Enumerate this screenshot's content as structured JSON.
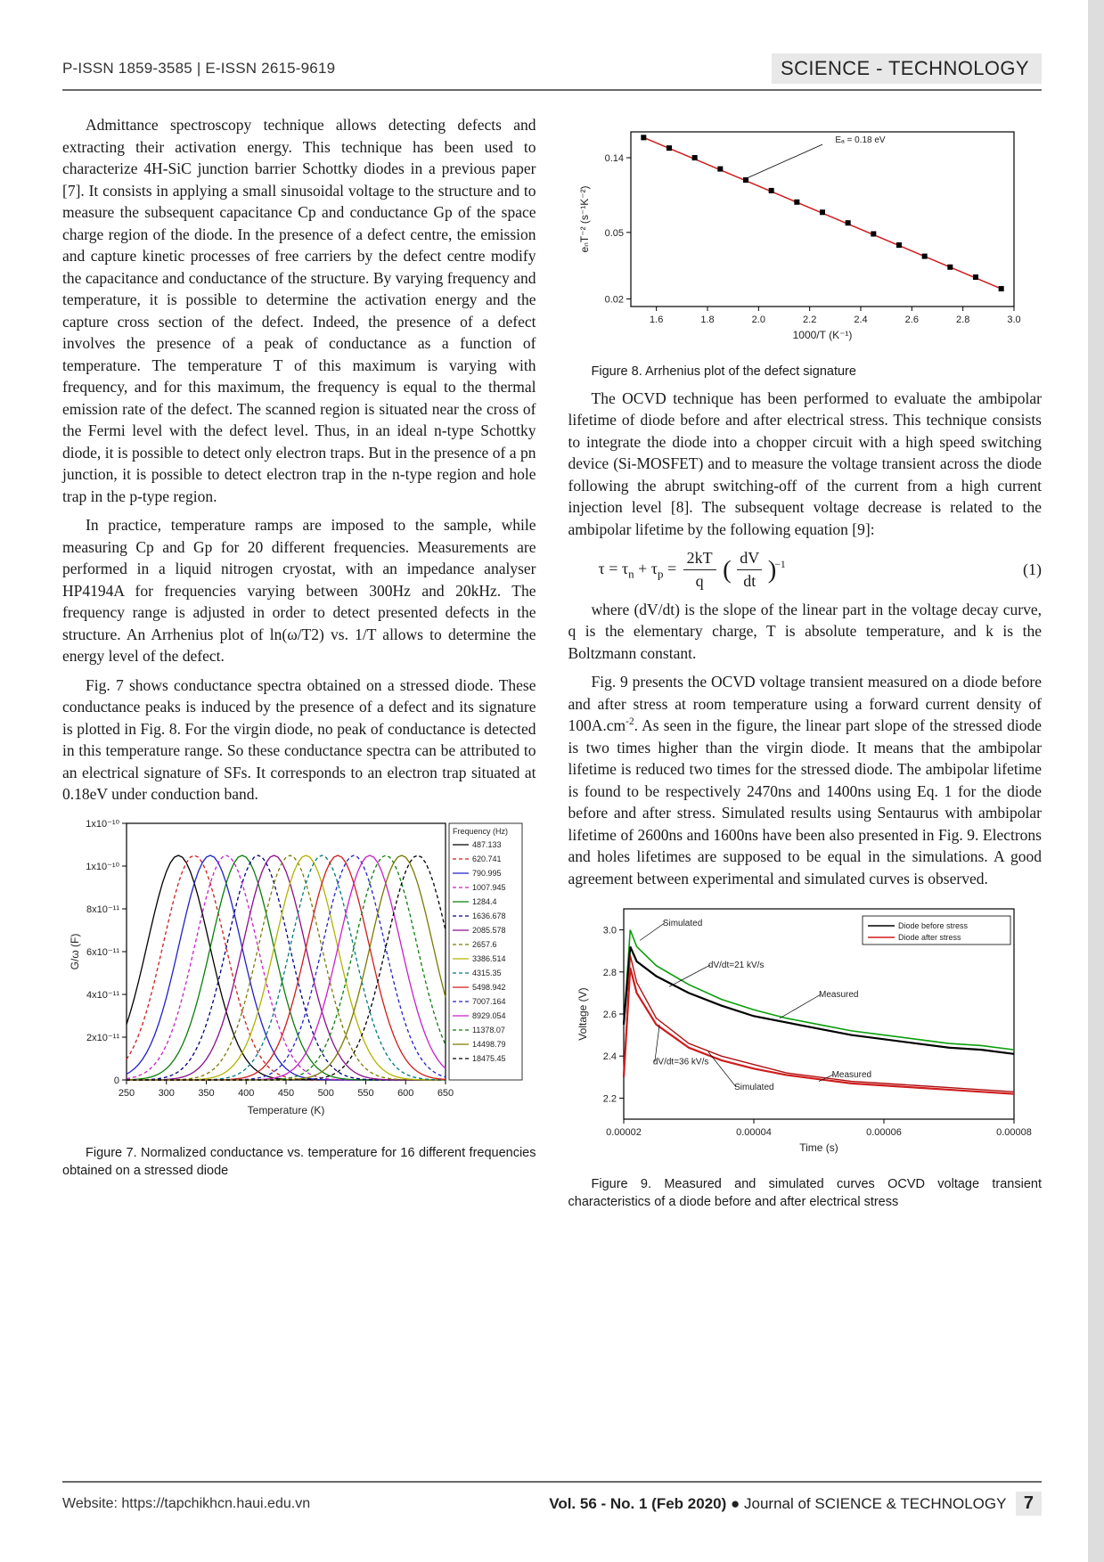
{
  "header": {
    "issn_left": "P-ISSN 1859-3585 | E-ISSN 2615-9619",
    "right": "SCIENCE - TECHNOLOGY"
  },
  "left_column": {
    "p1": "Admittance spectroscopy technique allows detecting defects and extracting their activation energy. This technique has been used to characterize 4H-SiC junction barrier Schottky diodes in a previous paper [7]. It consists in applying a small sinusoidal voltage to the structure and to measure the subsequent capacitance Cp and conductance Gp of the space charge region of the diode. In the presence of a defect centre, the emission and capture kinetic processes of free carriers by the defect centre modify the capacitance and conductance of the structure. By varying frequency and temperature, it is possible to determine the activation energy and the capture cross section of the defect. Indeed, the presence of a defect involves the presence of a peak of conductance as a function of temperature. The temperature T of this maximum is varying with frequency, and for this maximum, the frequency is equal to the thermal emission rate of the defect. The scanned region is situated near the cross of the Fermi level with the defect level. Thus, in an ideal n-type Schottky diode, it is possible to detect only electron traps. But in the presence of a pn junction, it is possible to detect electron trap in the n-type region and hole trap in the p-type region.",
    "p2": "In practice, temperature ramps are imposed to the sample, while measuring Cp and Gp for 20 different frequencies. Measurements are performed in a liquid nitrogen cryostat, with an impedance analyser HP4194A for frequencies varying between 300Hz and 20kHz. The frequency range is adjusted in order to detect presented defects in the structure. An Arrhenius plot of ln(ω/T2) vs. 1/T allows to determine the energy level of the defect.",
    "p3": "Fig. 7 shows conductance spectra obtained on a stressed diode. These conductance peaks is induced by the presence of a defect and its signature is plotted in Fig. 8. For the virgin diode, no peak of conductance is detected in this temperature range. So these conductance spectra can be attributed to an electrical signature of SFs. It corresponds to an electron trap situated at 0.18eV under conduction band.",
    "fig7_caption": "Figure 7. Normalized conductance vs. temperature for 16 different frequencies obtained on a stressed diode"
  },
  "right_column": {
    "fig8_caption": "Figure 8. Arrhenius plot of the defect signature",
    "p1": "The OCVD technique has been performed to evaluate the ambipolar lifetime of diode before and after electrical stress. This technique consists to integrate the diode into a chopper circuit with a high speed switching device (Si-MOSFET) and to measure the voltage transient across the diode following the abrupt switching-off of the current from a high current injection level [8]. The subsequent voltage decrease is related to the ambipolar lifetime by the following equation [9]:",
    "eq1_label": "(1)",
    "p2": "where (dV/dt) is the slope of the linear part in the voltage decay curve, q is the elementary charge, T is absolute temperature, and k is the Boltzmann constant.",
    "p3_a": "Fig. 9 presents the OCVD voltage transient measured on a diode before and after stress at room temperature using a forward current density of 100A.cm",
    "p3_exp": "-2",
    "p3_b": ". As seen in the figure, the linear part slope of the stressed diode is two times higher than the virgin diode. It means that the ambipolar lifetime is reduced two times for the stressed diode. The ambipolar lifetime is found to be respectively 2470ns and 1400ns using Eq. 1 for the diode before and after stress. Simulated results using Sentaurus with ambipolar lifetime of 2600ns and 1600ns have been also presented in Fig. 9. Electrons and holes lifetimes are supposed to be equal in the simulations. A good agreement between experimental and simulated curves is observed.",
    "fig9_caption": "Figure 9. Measured and simulated curves OCVD voltage transient characteristics of a diode before and after electrical stress"
  },
  "footer": {
    "left": "Website: https://tapchikhcn.haui.edu.vn",
    "right_vol": "Vol. 56 - No. 1 (Feb 2020)",
    "right_journal": " ● Journal of SCIENCE & TECHNOLOGY",
    "page_num": "7"
  },
  "figure7": {
    "type": "line-multi",
    "xlabel": "Temperature (K)",
    "ylabel": "G/ω (F)",
    "xrange": [
      250,
      650
    ],
    "xtick_step": 50,
    "yticks_raw": [
      0,
      2,
      4,
      6,
      8,
      10,
      12
    ],
    "ytick_labels": [
      "0",
      "2x10⁻¹¹",
      "4x10⁻¹¹",
      "6x10⁻¹¹",
      "8x10⁻¹¹",
      "1x10⁻¹⁰",
      "1x10⁻¹⁰"
    ],
    "legend_title": "Frequency (Hz)",
    "legend": [
      "487.133",
      "620.741",
      "790.995",
      "1007.945",
      "1284.4",
      "1636.678",
      "2085.578",
      "2657.6",
      "3386.514",
      "4315.35",
      "5498.942",
      "7007.164",
      "8929.054",
      "11378.07",
      "14498.79",
      "18475.45"
    ],
    "colors": [
      "#000000",
      "#d01c1c",
      "#2020c8",
      "#c820c8",
      "#0b7d0b",
      "#000080",
      "#8a0f8a",
      "#7a7a00",
      "#b3b300",
      "#007a7a",
      "#d01c1c",
      "#2020c8",
      "#c820c8",
      "#0b7d0b",
      "#7a7a00",
      "#000000"
    ],
    "dash": [
      "",
      "4 3",
      "",
      "4 3",
      "",
      "4 3",
      "",
      "4 3",
      "",
      "4 3",
      "",
      "4 3",
      "",
      "4 3",
      "",
      "4 3"
    ],
    "peaks_T": [
      315,
      335,
      355,
      375,
      395,
      415,
      435,
      455,
      475,
      495,
      515,
      535,
      555,
      575,
      595,
      615
    ],
    "peak_height": 10.5,
    "spread": 55,
    "background_color": "#ffffff",
    "axis_color": "#000000",
    "label_fontsize": 13
  },
  "figure8": {
    "type": "semilog-y-line+markers",
    "xlabel": "1000/T (K⁻¹)",
    "ylabel": "eₙT⁻² (s⁻¹K⁻²)",
    "xrange": [
      1.5,
      3.0
    ],
    "xtick_step": 0.2,
    "yticks": [
      0.02,
      0.05,
      0.14
    ],
    "ytick_labels": [
      "0.02",
      "0.05",
      "0.14"
    ],
    "annotation": "Eₐ = 0.18 eV",
    "line_color": "#d01c1c",
    "marker_color": "#000000",
    "marker_shape": "square",
    "marker_size": 6,
    "points_x": [
      1.55,
      1.65,
      1.75,
      1.85,
      1.95,
      2.05,
      2.15,
      2.25,
      2.35,
      2.45,
      2.55,
      2.65,
      2.75,
      2.85,
      2.95
    ],
    "points_y": [
      0.185,
      0.16,
      0.14,
      0.12,
      0.103,
      0.089,
      0.076,
      0.066,
      0.057,
      0.049,
      0.042,
      0.036,
      0.031,
      0.027,
      0.023
    ],
    "background_color": "#ffffff",
    "axis_color": "#000000",
    "label_fontsize": 12
  },
  "figure9": {
    "type": "line-transient",
    "xlabel": "Time (s)",
    "ylabel": "Voltage (V)",
    "xrange": [
      2e-05,
      8e-05
    ],
    "xticks": [
      2e-05,
      4e-05,
      6e-05,
      8e-05
    ],
    "xtick_labels": [
      "0.00002",
      "0.00004",
      "0.00006",
      "0.00008"
    ],
    "yrange": [
      2.1,
      3.1
    ],
    "ytick_step": 0.2,
    "legend": [
      "Diode before stress",
      "Diode after stress"
    ],
    "legend_colors": [
      "#000000",
      "#d01c1c"
    ],
    "annotations": [
      "Simulated",
      "dV/dt=21 kV/s",
      "Measured",
      "dV/dt=36 kV/s",
      "Simulated",
      "Measured"
    ],
    "before_measured_color": "#000000",
    "before_sim_color": "#0b9e0b",
    "after_measured_color": "#d01c1c",
    "after_sim_color": "#b01010",
    "background_color": "#ffffff",
    "axis_color": "#000000",
    "label_fontsize": 12,
    "series": {
      "before_measured": {
        "t": [
          2.0,
          2.1,
          2.2,
          2.5,
          3.0,
          3.5,
          4.0,
          4.5,
          5.0,
          5.5,
          6.0,
          6.5,
          7.0,
          7.5,
          8.0
        ],
        "v": [
          2.55,
          2.92,
          2.85,
          2.78,
          2.7,
          2.64,
          2.59,
          2.56,
          2.53,
          2.5,
          2.48,
          2.46,
          2.44,
          2.43,
          2.41
        ]
      },
      "before_sim": {
        "t": [
          2.0,
          2.1,
          2.2,
          2.5,
          3.0,
          3.5,
          4.0,
          4.5,
          5.0,
          5.5,
          6.0,
          6.5,
          7.0,
          7.5,
          8.0
        ],
        "v": [
          2.55,
          3.0,
          2.92,
          2.83,
          2.74,
          2.67,
          2.62,
          2.58,
          2.55,
          2.52,
          2.5,
          2.48,
          2.46,
          2.45,
          2.43
        ]
      },
      "after_measured": {
        "t": [
          2.0,
          2.1,
          2.2,
          2.5,
          3.0,
          3.5,
          4.0,
          4.5,
          5.0,
          5.5,
          6.0,
          6.5,
          7.0,
          7.5,
          8.0
        ],
        "v": [
          2.3,
          2.82,
          2.7,
          2.55,
          2.44,
          2.38,
          2.34,
          2.31,
          2.29,
          2.27,
          2.26,
          2.25,
          2.24,
          2.23,
          2.22
        ]
      },
      "after_sim": {
        "t": [
          2.0,
          2.1,
          2.2,
          2.5,
          3.0,
          3.5,
          4.0,
          4.5,
          5.0,
          5.5,
          6.0,
          6.5,
          7.0,
          7.5,
          8.0
        ],
        "v": [
          2.3,
          2.88,
          2.75,
          2.58,
          2.46,
          2.4,
          2.36,
          2.32,
          2.3,
          2.28,
          2.27,
          2.26,
          2.25,
          2.24,
          2.23
        ]
      }
    }
  }
}
